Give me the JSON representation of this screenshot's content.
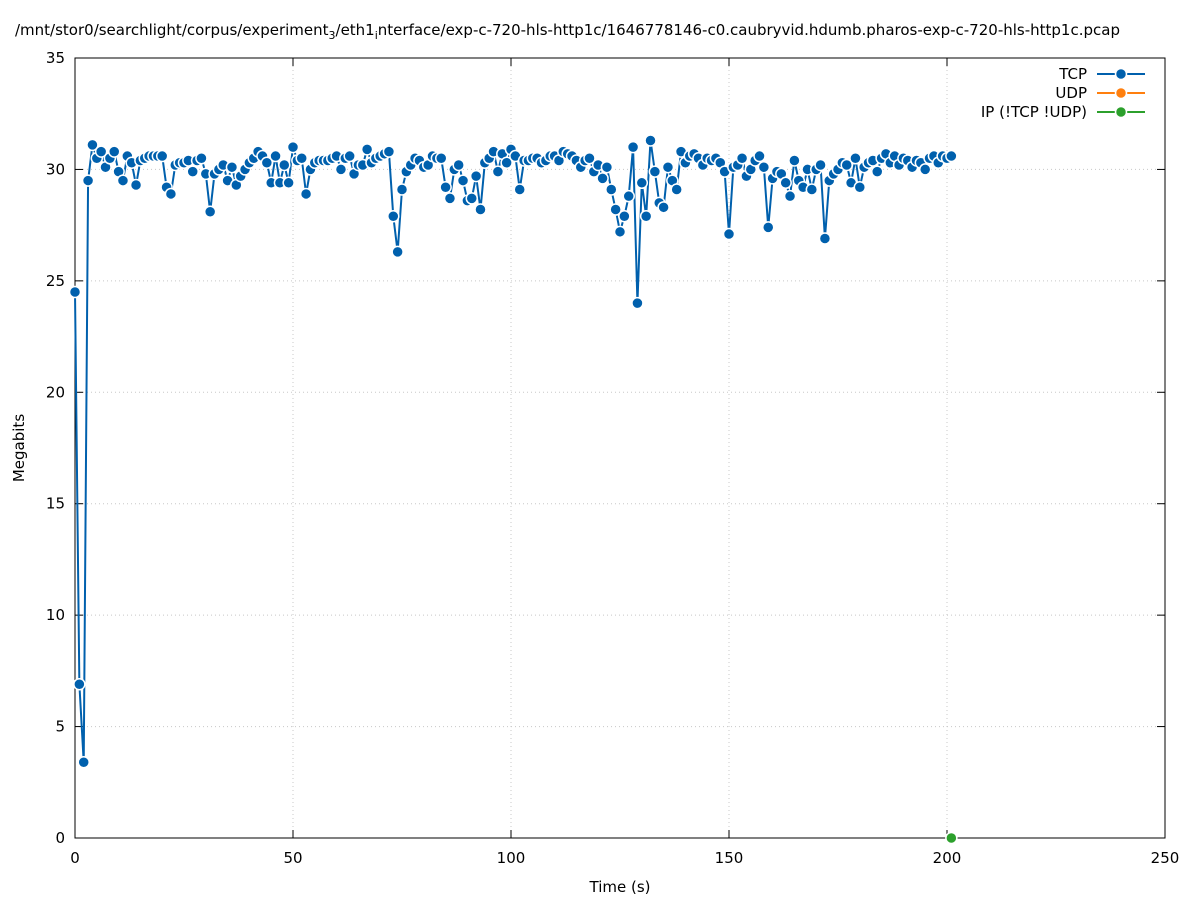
{
  "chart_data": {
    "type": "line",
    "title": [
      "/mnt/stor0/searchlight/corpus/experiment",
      "3",
      "/eth1",
      "i",
      "nterface/exp-c-720-hls-http1c/1646778146-c0.caubryvid.hdumb.pharos-exp-c-720-hls-http1c.pcap"
    ],
    "x_label": "Time (s)",
    "y_label": "Megabits",
    "xlim": [
      0,
      250
    ],
    "xticks": [
      0,
      50,
      100,
      150,
      200,
      250
    ],
    "ylim": [
      0,
      35
    ],
    "yticks": [
      0,
      5,
      10,
      15,
      20,
      25,
      30,
      35
    ],
    "grid": true,
    "legend": "top-right",
    "series": [
      {
        "name": "TCP",
        "color": "#0060ad",
        "x": [
          0,
          1,
          2,
          3,
          4,
          5,
          6,
          7,
          8,
          9,
          10,
          11,
          12,
          13,
          14,
          15,
          16,
          17,
          18,
          19,
          20,
          21,
          22,
          23,
          24,
          25,
          26,
          27,
          28,
          29,
          30,
          31,
          32,
          33,
          34,
          35,
          36,
          37,
          38,
          39,
          40,
          41,
          42,
          43,
          44,
          45,
          46,
          47,
          48,
          49,
          50,
          51,
          52,
          53,
          54,
          55,
          56,
          57,
          58,
          59,
          60,
          61,
          62,
          63,
          64,
          65,
          66,
          67,
          68,
          69,
          70,
          71,
          72,
          73,
          74,
          75,
          76,
          77,
          78,
          79,
          80,
          81,
          82,
          83,
          84,
          85,
          86,
          87,
          88,
          89,
          90,
          91,
          92,
          93,
          94,
          95,
          96,
          97,
          98,
          99,
          100,
          101,
          102,
          103,
          104,
          105,
          106,
          107,
          108,
          109,
          110,
          111,
          112,
          113,
          114,
          115,
          116,
          117,
          118,
          119,
          120,
          121,
          122,
          123,
          124,
          125,
          126,
          127,
          128,
          129,
          130,
          131,
          132,
          133,
          134,
          135,
          136,
          137,
          138,
          139,
          140,
          141,
          142,
          143,
          144,
          145,
          146,
          147,
          148,
          149,
          150,
          151,
          152,
          153,
          154,
          155,
          156,
          157,
          158,
          159,
          160,
          161,
          162,
          163,
          164,
          165,
          166,
          167,
          168,
          169,
          170,
          171,
          172,
          173,
          174,
          175,
          176,
          177,
          178,
          179,
          180,
          181,
          182,
          183,
          184,
          185,
          186,
          187,
          188,
          189,
          190,
          191,
          192,
          193,
          194,
          195,
          196,
          197,
          198,
          199,
          200,
          201
        ],
        "values": [
          24.5,
          6.9,
          3.4,
          29.5,
          31.1,
          30.5,
          30.8,
          30.1,
          30.5,
          30.8,
          29.9,
          29.5,
          30.6,
          30.3,
          29.3,
          30.4,
          30.5,
          30.6,
          30.6,
          30.6,
          30.6,
          29.2,
          28.9,
          30.2,
          30.3,
          30.3,
          30.4,
          29.9,
          30.4,
          30.5,
          29.8,
          28.1,
          29.8,
          30.0,
          30.2,
          29.5,
          30.1,
          29.3,
          29.7,
          30.0,
          30.3,
          30.5,
          30.8,
          30.6,
          30.3,
          29.4,
          30.6,
          29.4,
          30.2,
          29.4,
          31.0,
          30.4,
          30.5,
          28.9,
          30.0,
          30.3,
          30.4,
          30.4,
          30.4,
          30.5,
          30.6,
          30.0,
          30.5,
          30.6,
          29.8,
          30.2,
          30.2,
          30.9,
          30.3,
          30.5,
          30.6,
          30.7,
          30.8,
          27.9,
          26.3,
          29.1,
          29.9,
          30.2,
          30.5,
          30.4,
          30.1,
          30.2,
          30.6,
          30.5,
          30.5,
          29.2,
          28.7,
          30.0,
          30.2,
          29.5,
          28.6,
          28.7,
          29.7,
          28.2,
          30.3,
          30.5,
          30.8,
          29.9,
          30.7,
          30.3,
          30.9,
          30.6,
          29.1,
          30.4,
          30.4,
          30.5,
          30.5,
          30.3,
          30.4,
          30.6,
          30.6,
          30.4,
          30.8,
          30.7,
          30.6,
          30.4,
          30.1,
          30.4,
          30.5,
          29.9,
          30.2,
          29.6,
          30.1,
          29.1,
          28.2,
          27.2,
          27.9,
          28.8,
          31.0,
          24.0,
          29.4,
          27.9,
          31.3,
          29.9,
          28.5,
          28.3,
          30.1,
          29.5,
          29.1,
          30.8,
          30.3,
          30.6,
          30.7,
          30.5,
          30.2,
          30.5,
          30.4,
          30.5,
          30.3,
          29.9,
          27.1,
          30.1,
          30.2,
          30.5,
          29.7,
          30.0,
          30.4,
          30.6,
          30.1,
          27.4,
          29.6,
          29.9,
          29.8,
          29.4,
          28.8,
          30.4,
          29.5,
          29.2,
          30.0,
          29.1,
          30.0,
          30.2,
          26.9,
          29.5,
          29.8,
          30.0,
          30.3,
          30.2,
          29.4,
          30.5,
          29.2,
          30.1,
          30.3,
          30.4,
          29.9,
          30.5,
          30.7,
          30.3,
          30.6,
          30.2,
          30.5,
          30.4,
          30.1,
          30.4,
          30.3,
          30.0,
          30.5,
          30.6,
          30.3,
          30.6,
          30.5,
          30.6
        ]
      },
      {
        "name": "UDP",
        "color": "#ff7f0e",
        "x": [],
        "values": []
      },
      {
        "name": "IP (!TCP  !UDP)",
        "color": "#2ca02c",
        "x": [
          201
        ],
        "values": [
          0
        ]
      }
    ]
  }
}
